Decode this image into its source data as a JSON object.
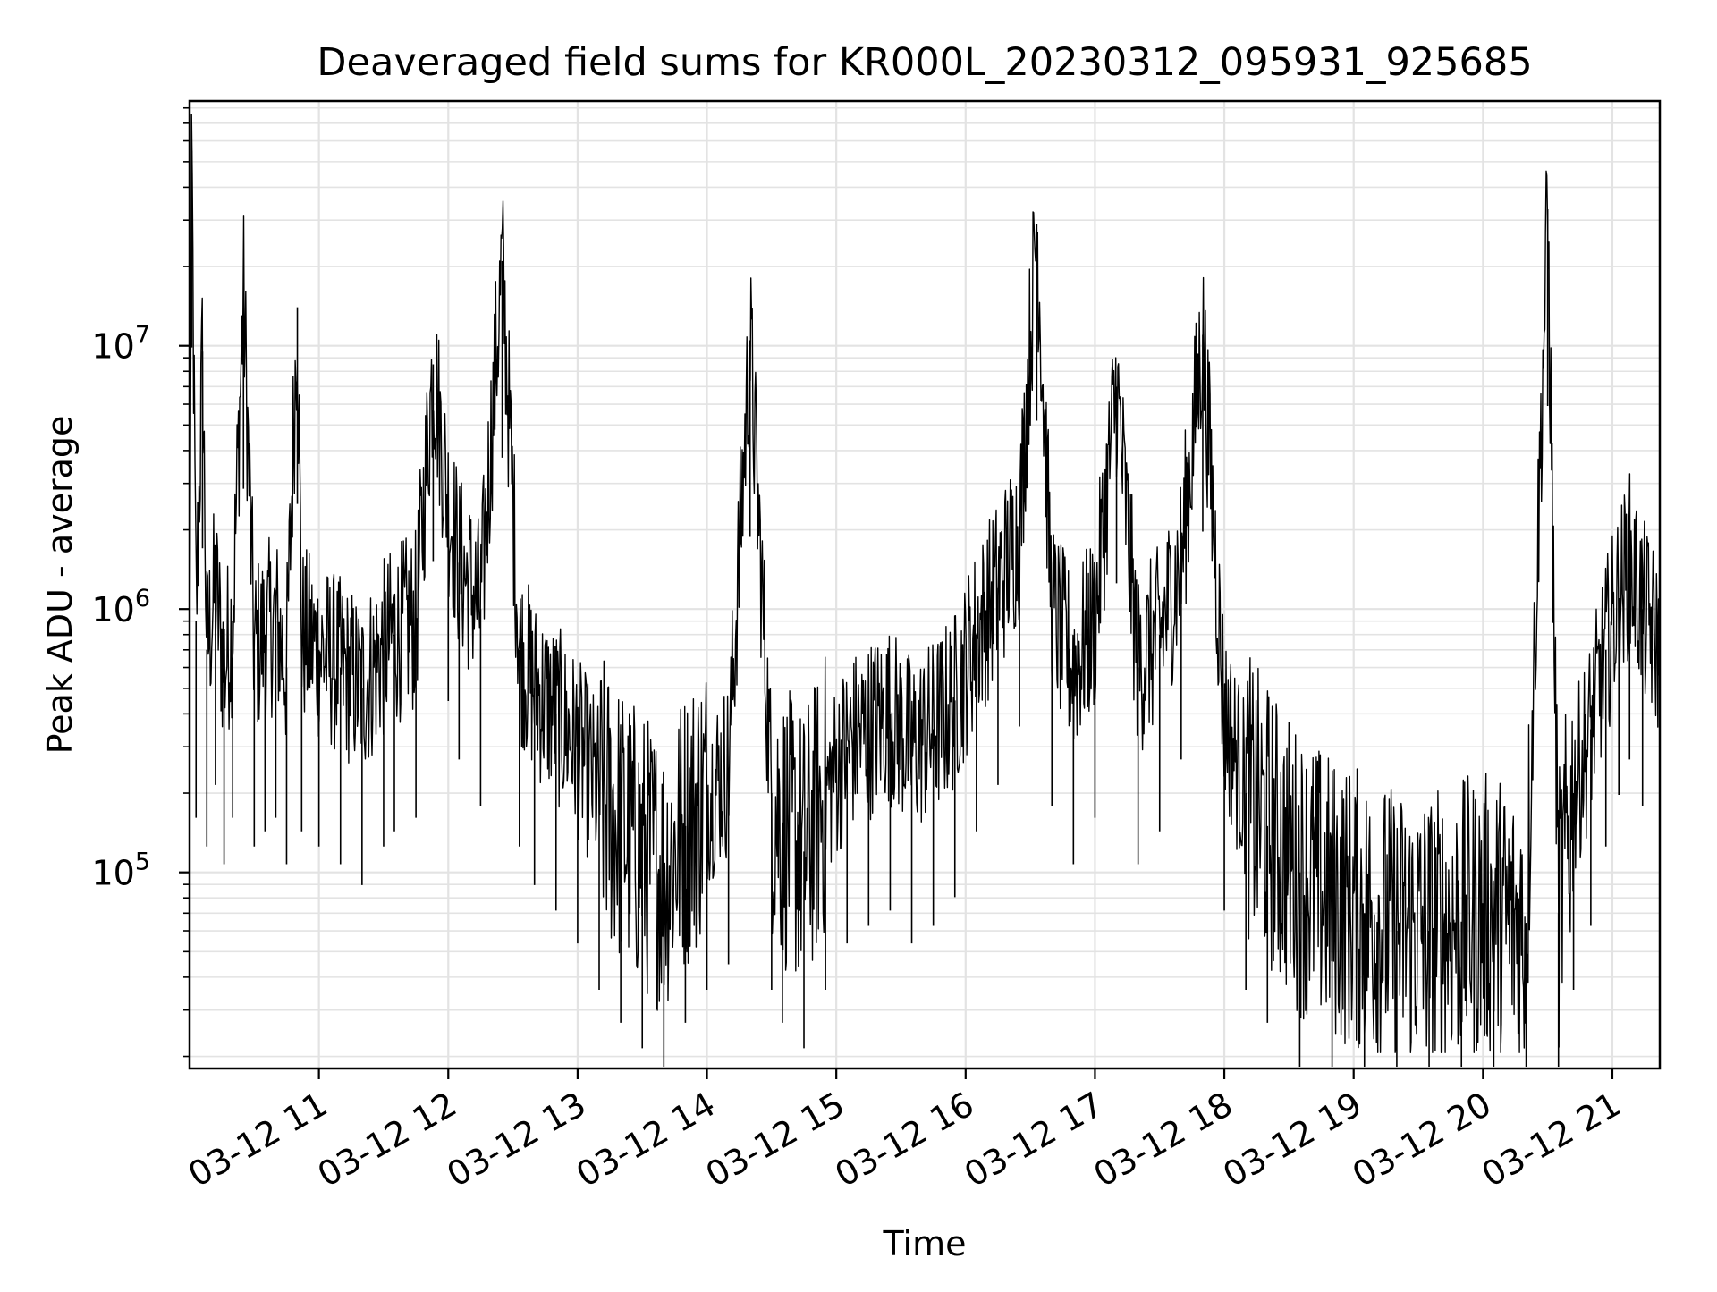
{
  "chart_data": {
    "type": "line",
    "title": "Deaveraged field sums for KR000L_20230312_095931_925685",
    "xlabel": "Time",
    "ylabel": "Peak ADU - average",
    "yscale": "log",
    "ylim": [
      18000,
      85000000
    ],
    "xlim": [
      "2023-03-12 10:00",
      "2023-03-12 21:22"
    ],
    "grid": true,
    "legend": "none",
    "x_ticks": [
      "03-12 11",
      "03-12 12",
      "03-12 13",
      "03-12 14",
      "03-12 15",
      "03-12 16",
      "03-12 17",
      "03-12 18",
      "03-12 19",
      "03-12 20",
      "03-12 21"
    ],
    "y_ticks": [
      {
        "base": "10",
        "exp": "5",
        "value": 100000
      },
      {
        "base": "10",
        "exp": "6",
        "value": 1000000
      },
      {
        "base": "10",
        "exp": "7",
        "value": 10000000
      }
    ],
    "series": [
      {
        "color": "#000000",
        "x": [
          "2023-03-12 10:00",
          "2023-03-12 10:01",
          "2023-03-12 10:03",
          "2023-03-12 10:06",
          "2023-03-12 10:08",
          "2023-03-12 10:12",
          "2023-03-12 10:16",
          "2023-03-12 10:20",
          "2023-03-12 10:25",
          "2023-03-12 10:30",
          "2023-03-12 10:35",
          "2023-03-12 10:40",
          "2023-03-12 10:45",
          "2023-03-12 10:50",
          "2023-03-12 10:52",
          "2023-03-12 11:00",
          "2023-03-12 11:10",
          "2023-03-12 11:20",
          "2023-03-12 11:30",
          "2023-03-12 11:35",
          "2023-03-12 11:45",
          "2023-03-12 11:53",
          "2023-03-12 12:00",
          "2023-03-12 12:05",
          "2023-03-12 12:15",
          "2023-03-12 12:25",
          "2023-03-12 12:33",
          "2023-03-12 12:40",
          "2023-03-12 12:50",
          "2023-03-12 13:00",
          "2023-03-12 13:10",
          "2023-03-12 13:20",
          "2023-03-12 13:30",
          "2023-03-12 13:40",
          "2023-03-12 13:50",
          "2023-03-12 14:00",
          "2023-03-12 14:10",
          "2023-03-12 14:20",
          "2023-03-12 14:30",
          "2023-03-12 14:35",
          "2023-03-12 14:45",
          "2023-03-12 14:55",
          "2023-03-12 15:05",
          "2023-03-12 15:15",
          "2023-03-12 15:25",
          "2023-03-12 15:35",
          "2023-03-12 15:45",
          "2023-03-12 15:55",
          "2023-03-12 16:05",
          "2023-03-12 16:15",
          "2023-03-12 16:25",
          "2023-03-12 16:33",
          "2023-03-12 16:40",
          "2023-03-12 16:50",
          "2023-03-12 17:00",
          "2023-03-12 17:10",
          "2023-03-12 17:20",
          "2023-03-12 17:30",
          "2023-03-12 17:40",
          "2023-03-12 17:50",
          "2023-03-12 18:00",
          "2023-03-12 18:10",
          "2023-03-12 18:20",
          "2023-03-12 18:35",
          "2023-03-12 18:50",
          "2023-03-12 19:05",
          "2023-03-12 19:20",
          "2023-03-12 19:35",
          "2023-03-12 19:50",
          "2023-03-12 20:05",
          "2023-03-12 20:20",
          "2023-03-12 20:30",
          "2023-03-12 20:35",
          "2023-03-12 20:42",
          "2023-03-12 20:50",
          "2023-03-12 20:57",
          "2023-03-12 21:03",
          "2023-03-12 21:08",
          "2023-03-12 21:14",
          "2023-03-12 21:22"
        ],
        "y": [
          600000,
          55000000,
          900000,
          9500000,
          700000,
          1200000,
          600000,
          900000,
          16000000,
          700000,
          800000,
          900000,
          600000,
          14000000,
          800000,
          700000,
          600000,
          500000,
          700000,
          800000,
          900000,
          8500000,
          2500000,
          1500000,
          1000000,
          21000000,
          700000,
          500000,
          400000,
          300000,
          200000,
          150000,
          120000,
          100000,
          150000,
          200000,
          250000,
          10500000,
          200000,
          150000,
          120000,
          200000,
          300000,
          350000,
          400000,
          300000,
          350000,
          450000,
          800000,
          1200000,
          2000000,
          29000000,
          1000000,
          600000,
          900000,
          7000000,
          600000,
          800000,
          1500000,
          11000000,
          400000,
          200000,
          150000,
          100000,
          80000,
          70000,
          60000,
          60000,
          65000,
          70000,
          60000,
          33000000,
          70000,
          200000,
          350000,
          700000,
          1100000,
          1500000,
          1000000,
          700000
        ]
      }
    ]
  }
}
